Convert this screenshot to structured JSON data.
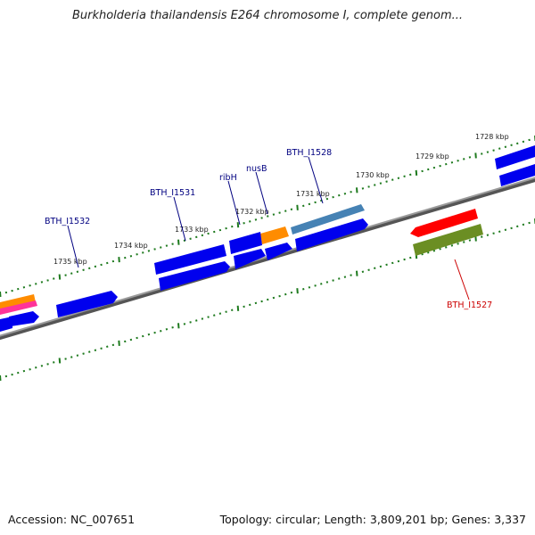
{
  "title": "Burkholderia thailandensis E264 chromosome I, complete genom...",
  "footer": {
    "accession": "Accession: NC_007651",
    "info": "Topology: circular; Length: 3,809,201 bp; Genes: 3,337"
  },
  "colors": {
    "cds": "#0000ee",
    "rna_orange": "#ff8c00",
    "rna_pink": "#ff3399",
    "steelblue": "#4682b4",
    "red": "#ff0000",
    "olive": "#6b8e23",
    "backbone": "#777777",
    "ticks": "#1e7a1e",
    "label_blue": "#000080",
    "label_red": "#cc0000"
  },
  "kbp_labels": [
    "1728 kbp",
    "1729 kbp",
    "1730 kbp",
    "1731 kbp",
    "1732 kbp",
    "1733 kbp",
    "1734 kbp",
    "1735 kbp"
  ],
  "gene_labels": [
    "BTH_I1528",
    "nusB",
    "ribH",
    "BTH_I1531",
    "BTH_I1532",
    "BTH_I1527"
  ]
}
